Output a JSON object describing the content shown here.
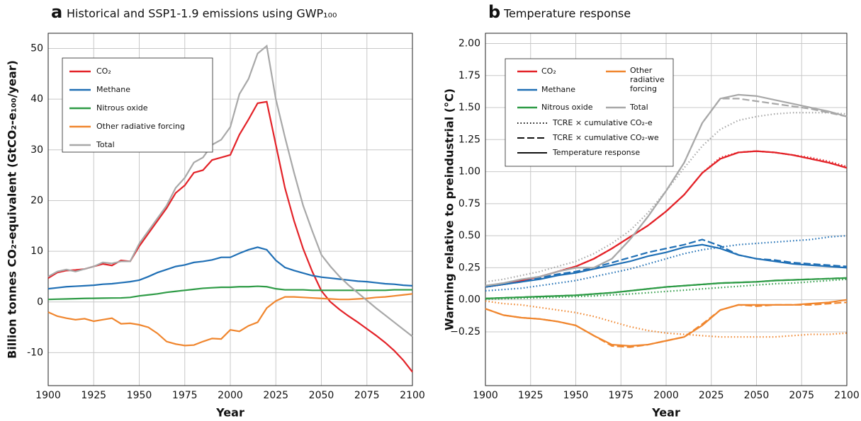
{
  "chart_data": [
    {
      "type": "line",
      "label": "a",
      "title": "Historical and SSP1-1.9 emissions using GWP₁₀₀",
      "x_label": "Year",
      "y_label": "Billion tonnes CO₂-equivalent (GtCO₂-e₁₀₀/year)",
      "xlim": [
        1900,
        2100
      ],
      "xticks": [
        1900,
        1925,
        1950,
        1975,
        2000,
        2025,
        2050,
        2075,
        2100
      ],
      "ylim": [
        -16.5,
        53
      ],
      "yticks": [
        -10,
        0,
        10,
        20,
        30,
        40,
        50
      ],
      "grid": true,
      "x": [
        1900,
        1905,
        1910,
        1915,
        1920,
        1925,
        1930,
        1935,
        1940,
        1945,
        1950,
        1955,
        1960,
        1965,
        1970,
        1975,
        1980,
        1985,
        1990,
        1995,
        2000,
        2005,
        2010,
        2015,
        2020,
        2025,
        2030,
        2035,
        2040,
        2045,
        2050,
        2055,
        2060,
        2065,
        2070,
        2075,
        2080,
        2085,
        2090,
        2095,
        2100
      ],
      "series": [
        {
          "name": "CO₂",
          "color": "#e32228",
          "values": [
            4.7,
            5.8,
            6.2,
            6.3,
            6.5,
            7.0,
            7.5,
            7.2,
            8.2,
            8.0,
            11.0,
            13.5,
            16.0,
            18.5,
            21.5,
            23.0,
            25.5,
            26.0,
            28.0,
            28.5,
            29.0,
            33.0,
            36.0,
            39.2,
            39.5,
            31.0,
            22.5,
            16.0,
            10.5,
            6.0,
            2.2,
            0.0,
            -1.5,
            -2.8,
            -4.0,
            -5.3,
            -6.6,
            -8.0,
            -9.6,
            -11.5,
            -13.8
          ]
        },
        {
          "name": "Methane",
          "color": "#1f6fb5",
          "values": [
            2.6,
            2.8,
            3.0,
            3.1,
            3.2,
            3.3,
            3.5,
            3.6,
            3.8,
            4.0,
            4.3,
            5.0,
            5.8,
            6.4,
            7.0,
            7.3,
            7.8,
            8.0,
            8.3,
            8.8,
            8.8,
            9.6,
            10.3,
            10.8,
            10.3,
            8.2,
            6.8,
            6.2,
            5.7,
            5.2,
            4.9,
            4.7,
            4.5,
            4.3,
            4.1,
            4.0,
            3.8,
            3.6,
            3.5,
            3.3,
            3.2
          ]
        },
        {
          "name": "Nitrous oxide",
          "color": "#2e9b46",
          "values": [
            0.5,
            0.55,
            0.6,
            0.65,
            0.7,
            0.72,
            0.75,
            0.78,
            0.8,
            0.9,
            1.2,
            1.4,
            1.6,
            1.9,
            2.1,
            2.3,
            2.5,
            2.7,
            2.8,
            2.9,
            2.9,
            3.0,
            3.0,
            3.1,
            3.0,
            2.6,
            2.4,
            2.4,
            2.4,
            2.3,
            2.3,
            2.3,
            2.3,
            2.3,
            2.3,
            2.3,
            2.3,
            2.3,
            2.4,
            2.4,
            2.4
          ]
        },
        {
          "name": "Other radiative forcing",
          "color": "#f0862e",
          "values": [
            -2.0,
            -2.8,
            -3.2,
            -3.5,
            -3.3,
            -3.8,
            -3.5,
            -3.2,
            -4.3,
            -4.2,
            -4.5,
            -5.0,
            -6.2,
            -7.8,
            -8.3,
            -8.6,
            -8.5,
            -7.8,
            -7.2,
            -7.3,
            -5.5,
            -5.8,
            -4.7,
            -4.0,
            -1.2,
            0.2,
            1.0,
            1.0,
            0.9,
            0.8,
            0.7,
            0.6,
            0.5,
            0.5,
            0.6,
            0.7,
            0.9,
            1.0,
            1.2,
            1.4,
            1.6
          ]
        },
        {
          "name": "Total",
          "color": "#a8a8a8",
          "values": [
            5.0,
            6.0,
            6.4,
            6.0,
            6.5,
            7.0,
            7.8,
            7.6,
            8.0,
            8.0,
            11.5,
            14.0,
            16.5,
            19.0,
            22.5,
            24.5,
            27.5,
            28.5,
            31.0,
            32.0,
            34.5,
            41.0,
            44.0,
            49.0,
            50.5,
            40.0,
            32.5,
            25.5,
            19.0,
            14.0,
            9.3,
            7.0,
            5.0,
            3.3,
            1.8,
            0.3,
            -1.2,
            -2.6,
            -4.0,
            -5.4,
            -6.8
          ]
        }
      ]
    },
    {
      "type": "line",
      "label": "b",
      "title": "Temperature response",
      "x_label": "Year",
      "y_label": "Warming relative to preindustrial (°C)",
      "xlim": [
        1900,
        2100
      ],
      "xticks": [
        1900,
        1925,
        1950,
        1975,
        2000,
        2025,
        2050,
        2075,
        2100
      ],
      "ylim": [
        -0.67,
        2.08
      ],
      "yticks": [
        {
          "value": 2,
          "label": "2.00"
        },
        1.75,
        {
          "value": 1.5,
          "label": "1.50"
        },
        1.25,
        {
          "value": 1,
          "label": "1.00"
        },
        0.75,
        {
          "value": 0.5,
          "label": "0.50"
        },
        0.25,
        {
          "value": 0,
          "label": "0.00"
        },
        {
          "value": -0.25,
          "label": "−0.25"
        }
      ],
      "grid": true,
      "line_styles": [
        "TCRE × cumulative CO₂-e",
        "TCRE × cumulative CO₂-we",
        "Temperature response"
      ],
      "x": [
        1900,
        1910,
        1920,
        1930,
        1940,
        1950,
        1960,
        1970,
        1980,
        1990,
        2000,
        2010,
        2020,
        2030,
        2040,
        2050,
        2060,
        2070,
        2080,
        2090,
        2100
      ],
      "series": [
        {
          "name": "CO₂",
          "color": "#e32228",
          "values": [
            0.1,
            0.12,
            0.15,
            0.18,
            0.22,
            0.26,
            0.32,
            0.4,
            0.49,
            0.58,
            0.69,
            0.82,
            0.99,
            1.1,
            1.15,
            1.16,
            1.15,
            1.13,
            1.1,
            1.07,
            1.03
          ],
          "values_co2e": [
            0.1,
            0.12,
            0.15,
            0.18,
            0.22,
            0.26,
            0.32,
            0.4,
            0.49,
            0.58,
            0.69,
            0.82,
            0.99,
            1.11,
            1.15,
            1.16,
            1.15,
            1.13,
            1.11,
            1.08,
            1.04
          ],
          "values_co2we": [
            0.1,
            0.12,
            0.15,
            0.18,
            0.22,
            0.26,
            0.32,
            0.4,
            0.49,
            0.58,
            0.69,
            0.82,
            0.99,
            1.1,
            1.15,
            1.16,
            1.15,
            1.13,
            1.1,
            1.07,
            1.03
          ]
        },
        {
          "name": "Methane",
          "color": "#1f6fb5",
          "values": [
            0.1,
            0.12,
            0.14,
            0.16,
            0.19,
            0.21,
            0.24,
            0.27,
            0.3,
            0.34,
            0.37,
            0.41,
            0.43,
            0.4,
            0.35,
            0.32,
            0.3,
            0.28,
            0.27,
            0.26,
            0.25
          ],
          "values_co2e": [
            0.07,
            0.08,
            0.09,
            0.11,
            0.13,
            0.15,
            0.18,
            0.21,
            0.24,
            0.28,
            0.32,
            0.36,
            0.39,
            0.41,
            0.43,
            0.44,
            0.45,
            0.46,
            0.47,
            0.49,
            0.5
          ],
          "values_co2we": [
            0.1,
            0.12,
            0.14,
            0.17,
            0.2,
            0.22,
            0.25,
            0.29,
            0.33,
            0.37,
            0.4,
            0.43,
            0.47,
            0.42,
            0.35,
            0.32,
            0.31,
            0.29,
            0.28,
            0.27,
            0.26
          ]
        },
        {
          "name": "Nitrous oxide",
          "color": "#2e9b46",
          "values": [
            0.01,
            0.015,
            0.02,
            0.025,
            0.03,
            0.035,
            0.045,
            0.055,
            0.07,
            0.085,
            0.1,
            0.11,
            0.12,
            0.13,
            0.135,
            0.14,
            0.15,
            0.155,
            0.16,
            0.165,
            0.17
          ],
          "values_co2e": [
            0.005,
            0.008,
            0.012,
            0.015,
            0.02,
            0.025,
            0.03,
            0.038,
            0.045,
            0.055,
            0.065,
            0.075,
            0.085,
            0.095,
            0.105,
            0.115,
            0.125,
            0.13,
            0.14,
            0.15,
            0.16
          ],
          "values_co2we": [
            0.01,
            0.015,
            0.02,
            0.025,
            0.03,
            0.035,
            0.045,
            0.055,
            0.07,
            0.085,
            0.1,
            0.11,
            0.12,
            0.13,
            0.135,
            0.14,
            0.15,
            0.155,
            0.16,
            0.165,
            0.17
          ]
        },
        {
          "name": "Other radiative forcing",
          "color": "#f0862e",
          "values": [
            -0.07,
            -0.12,
            -0.14,
            -0.15,
            -0.17,
            -0.2,
            -0.28,
            -0.35,
            -0.36,
            -0.35,
            -0.32,
            -0.29,
            -0.2,
            -0.08,
            -0.04,
            -0.04,
            -0.04,
            -0.04,
            -0.03,
            -0.02,
            0.0
          ],
          "values_co2e": [
            -0.01,
            -0.03,
            -0.04,
            -0.06,
            -0.08,
            -0.1,
            -0.13,
            -0.17,
            -0.21,
            -0.24,
            -0.26,
            -0.27,
            -0.28,
            -0.29,
            -0.29,
            -0.29,
            -0.29,
            -0.28,
            -0.27,
            -0.27,
            -0.26
          ],
          "values_co2we": [
            -0.07,
            -0.12,
            -0.14,
            -0.15,
            -0.17,
            -0.2,
            -0.28,
            -0.36,
            -0.37,
            -0.35,
            -0.32,
            -0.29,
            -0.19,
            -0.08,
            -0.04,
            -0.05,
            -0.04,
            -0.04,
            -0.04,
            -0.03,
            -0.02
          ]
        },
        {
          "name": "Total",
          "color": "#a8a8a8",
          "values": [
            0.11,
            0.13,
            0.16,
            0.18,
            0.22,
            0.25,
            0.25,
            0.32,
            0.47,
            0.65,
            0.85,
            1.07,
            1.38,
            1.57,
            1.6,
            1.59,
            1.56,
            1.53,
            1.5,
            1.47,
            1.43
          ],
          "values_co2e": [
            0.14,
            0.16,
            0.19,
            0.22,
            0.26,
            0.3,
            0.36,
            0.44,
            0.54,
            0.68,
            0.85,
            1.03,
            1.2,
            1.33,
            1.4,
            1.43,
            1.45,
            1.46,
            1.46,
            1.46,
            1.45
          ],
          "values_co2we": [
            0.11,
            0.13,
            0.16,
            0.18,
            0.22,
            0.25,
            0.25,
            0.32,
            0.47,
            0.65,
            0.85,
            1.07,
            1.38,
            1.57,
            1.57,
            1.55,
            1.53,
            1.51,
            1.49,
            1.46,
            1.43
          ]
        }
      ]
    }
  ]
}
